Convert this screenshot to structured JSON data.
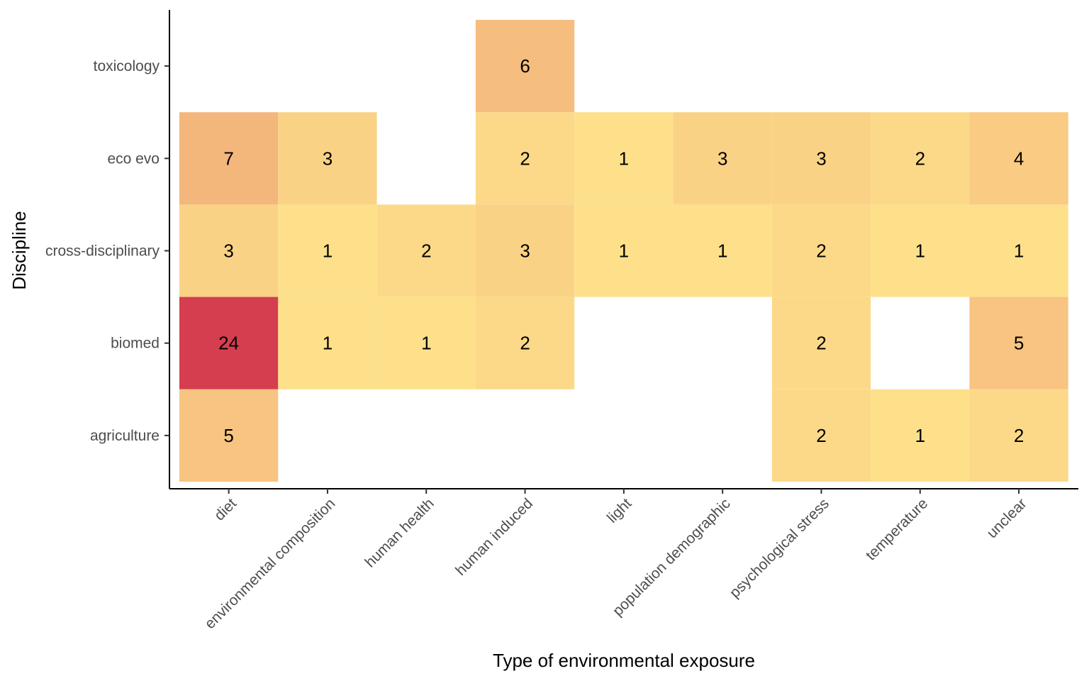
{
  "chart_data": {
    "type": "heatmap",
    "xlabel": "Type of environmental exposure",
    "ylabel": "Discipline",
    "x_categories": [
      "diet",
      "environmental composition",
      "human health",
      "human induced",
      "light",
      "population demographic",
      "psychological stress",
      "temperature",
      "unclear"
    ],
    "y_categories": [
      "agriculture",
      "biomed",
      "cross-disciplinary",
      "eco evo",
      "toxicology"
    ],
    "cells": [
      {
        "x": "human induced",
        "y": "toxicology",
        "value": 6
      },
      {
        "x": "diet",
        "y": "eco evo",
        "value": 7
      },
      {
        "x": "environmental composition",
        "y": "eco evo",
        "value": 3
      },
      {
        "x": "human induced",
        "y": "eco evo",
        "value": 2
      },
      {
        "x": "light",
        "y": "eco evo",
        "value": 1
      },
      {
        "x": "population demographic",
        "y": "eco evo",
        "value": 3
      },
      {
        "x": "psychological stress",
        "y": "eco evo",
        "value": 3
      },
      {
        "x": "temperature",
        "y": "eco evo",
        "value": 2
      },
      {
        "x": "unclear",
        "y": "eco evo",
        "value": 4
      },
      {
        "x": "diet",
        "y": "cross-disciplinary",
        "value": 3
      },
      {
        "x": "environmental composition",
        "y": "cross-disciplinary",
        "value": 1
      },
      {
        "x": "human health",
        "y": "cross-disciplinary",
        "value": 2
      },
      {
        "x": "human induced",
        "y": "cross-disciplinary",
        "value": 3
      },
      {
        "x": "light",
        "y": "cross-disciplinary",
        "value": 1
      },
      {
        "x": "population demographic",
        "y": "cross-disciplinary",
        "value": 1
      },
      {
        "x": "psychological stress",
        "y": "cross-disciplinary",
        "value": 2
      },
      {
        "x": "temperature",
        "y": "cross-disciplinary",
        "value": 1
      },
      {
        "x": "unclear",
        "y": "cross-disciplinary",
        "value": 1
      },
      {
        "x": "diet",
        "y": "biomed",
        "value": 24
      },
      {
        "x": "environmental composition",
        "y": "biomed",
        "value": 1
      },
      {
        "x": "human health",
        "y": "biomed",
        "value": 1
      },
      {
        "x": "human induced",
        "y": "biomed",
        "value": 2
      },
      {
        "x": "psychological stress",
        "y": "biomed",
        "value": 2
      },
      {
        "x": "unclear",
        "y": "biomed",
        "value": 5
      },
      {
        "x": "diet",
        "y": "agriculture",
        "value": 5
      },
      {
        "x": "psychological stress",
        "y": "agriculture",
        "value": 2
      },
      {
        "x": "temperature",
        "y": "agriculture",
        "value": 1
      },
      {
        "x": "unclear",
        "y": "agriculture",
        "value": 2
      }
    ],
    "color_scale": {
      "low": "#fee08b",
      "high": "#d53e4f",
      "value_range": [
        1,
        24
      ]
    },
    "grid": false,
    "legend": "none"
  }
}
